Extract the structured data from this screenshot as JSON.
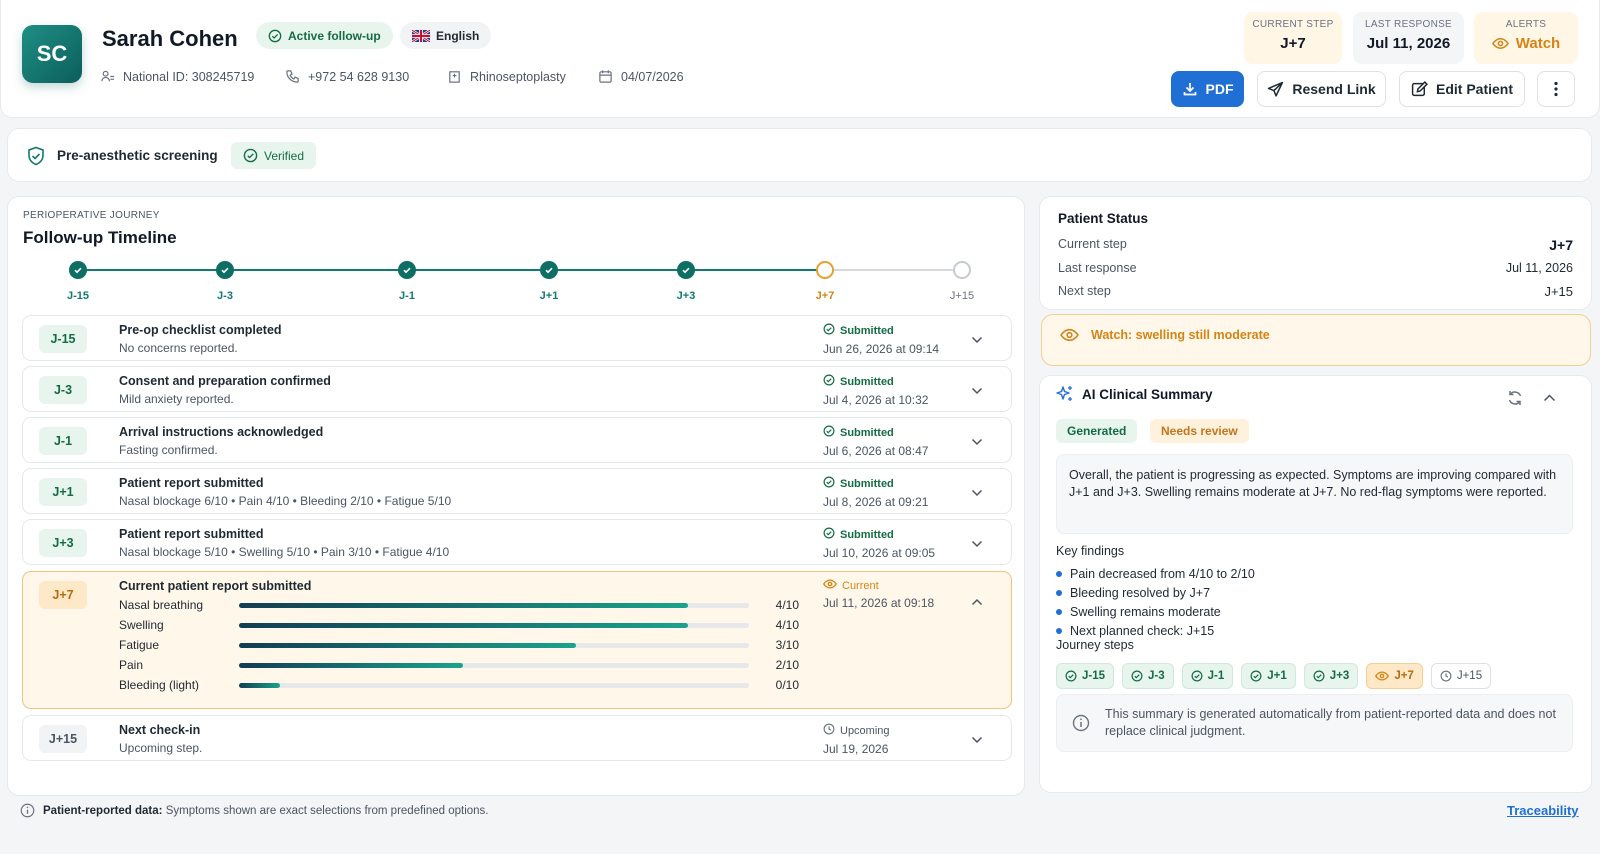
{
  "patient": {
    "initials": "SC",
    "name": "Sarah Cohen",
    "status_pill": "Active follow-up",
    "language": "English",
    "national_id": "National ID: 308245719",
    "phone": "+972 54 628 9130",
    "procedure": "Rhinoseptoplasty",
    "date": "04/07/2026"
  },
  "header_stats": {
    "current_step_label": "CURRENT STEP",
    "current_step_value": "J+7",
    "last_response_label": "LAST RESPONSE",
    "last_response_value": "Jul 11, 2026",
    "alerts_label": "ALERTS",
    "alerts_value": "Watch"
  },
  "actions": {
    "pdf": "PDF",
    "resend": "Resend Link",
    "edit": "Edit Patient"
  },
  "screening": {
    "title": "Pre-anesthetic screening",
    "status": "Verified"
  },
  "timeline": {
    "eyebrow": "PERIOPERATIVE JOURNEY",
    "title": "Follow-up Timeline",
    "nodes": [
      "J-15",
      "J-3",
      "J-1",
      "J+1",
      "J+3",
      "J+7",
      "J+15"
    ],
    "steps": [
      {
        "badge": "J-15",
        "title": "Pre-op checklist completed",
        "sub": "No concerns reported.",
        "status": "Submitted",
        "date": "Jun 26, 2026 at 09:14"
      },
      {
        "badge": "J-3",
        "title": "Consent and preparation confirmed",
        "sub": "Mild anxiety reported.",
        "status": "Submitted",
        "date": "Jul 4, 2026 at 10:32"
      },
      {
        "badge": "J-1",
        "title": "Arrival instructions acknowledged",
        "sub": "Fasting confirmed.",
        "status": "Submitted",
        "date": "Jul 6, 2026 at 08:47"
      },
      {
        "badge": "J+1",
        "title": "Patient report submitted",
        "sub": "Nasal blockage 6/10 • Pain 4/10 • Bleeding 2/10 • Fatigue 5/10",
        "status": "Submitted",
        "date": "Jul 8, 2026 at 09:21"
      },
      {
        "badge": "J+3",
        "title": "Patient report submitted",
        "sub": "Nasal blockage 5/10 • Swelling 5/10 • Pain 3/10 • Fatigue 4/10",
        "status": "Submitted",
        "date": "Jul 10, 2026 at 09:05"
      }
    ],
    "current": {
      "badge": "J+7",
      "title": "Current patient report submitted",
      "status": "Current",
      "date": "Jul 11, 2026 at 09:18",
      "symptoms": [
        {
          "label": "Nasal breathing",
          "score": 4,
          "value": "4/10"
        },
        {
          "label": "Swelling",
          "score": 4,
          "value": "4/10"
        },
        {
          "label": "Fatigue",
          "score": 3,
          "value": "3/10"
        },
        {
          "label": "Pain",
          "score": 2,
          "value": "2/10"
        },
        {
          "label": "Bleeding (light)",
          "score": 0,
          "value": "0/10"
        }
      ]
    },
    "next": {
      "badge": "J+15",
      "title": "Next check-in",
      "sub": "Upcoming step.",
      "status": "Upcoming",
      "date": "Jul 19, 2026"
    }
  },
  "patient_status": {
    "title": "Patient Status",
    "current_step_label": "Current step",
    "current_step_value": "J+7",
    "last_response_label": "Last response",
    "last_response_value": "Jul 11, 2026",
    "next_step_label": "Next step",
    "next_step_value": "J+15"
  },
  "watch_alert": "Watch: swelling still moderate",
  "ai_summary": {
    "title": "AI Clinical Summary",
    "tag_generated": "Generated",
    "tag_review": "Needs review",
    "summary": "Overall, the patient is progressing as expected. Symptoms are improving compared with J+1 and J+3. Swelling remains moderate at J+7. No red-flag symptoms were reported.",
    "findings_title": "Key findings",
    "findings": [
      "Pain decreased from 4/10 to 2/10",
      "Bleeding resolved by J+7",
      "Swelling remains moderate",
      "Next planned check: J+15"
    ],
    "journey_title": "Journey steps",
    "journey": [
      "J-15",
      "J-3",
      "J-1",
      "J+1",
      "J+3",
      "J+7",
      "J+15"
    ],
    "disclaimer": "This summary is generated automatically from patient-reported data and does not replace clinical judgment."
  },
  "footer": {
    "label": "Patient-reported data:",
    "text": "Symptoms shown are exact selections from predefined options.",
    "link": "Traceability"
  },
  "colors": {
    "primary": "#1f6fd4",
    "teal": "#0d6e64",
    "success": "#146c43",
    "warning": "#b86a12"
  }
}
